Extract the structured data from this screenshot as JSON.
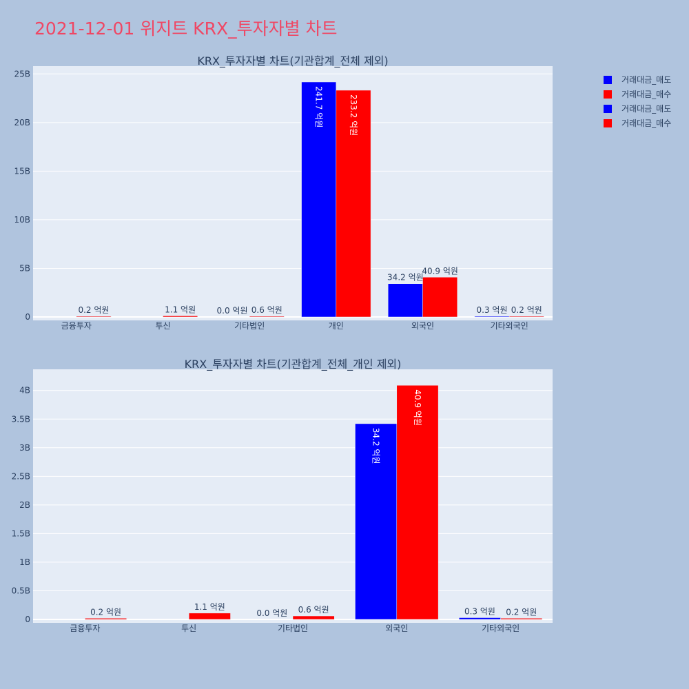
{
  "page": {
    "title": "2021-12-01 위지트 KRX_투자자별 차트"
  },
  "colors": {
    "background": "#b0c4de",
    "plot_bg": "#e5ecf6",
    "gridline": "#ffffff",
    "sell": "#0000ff",
    "buy": "#ff0000",
    "title": "#ef4764",
    "text": "#2a3f5f"
  },
  "legend": {
    "items": [
      {
        "label": "거래대금_매도",
        "color": "#0000ff"
      },
      {
        "label": "거래대금_매수",
        "color": "#ff0000"
      },
      {
        "label": "거래대금_매도",
        "color": "#0000ff"
      },
      {
        "label": "거래대금_매수",
        "color": "#ff0000"
      }
    ]
  },
  "chart_data": [
    {
      "type": "bar",
      "title": "KRX_투자자별 차트(기관합계_전체 제외)",
      "categories": [
        "금융투자",
        "투신",
        "기타법인",
        "개인",
        "외국인",
        "기타외국인"
      ],
      "ylim": [
        0,
        25800000000
      ],
      "yticks": [
        0,
        5000000000,
        10000000000,
        15000000000,
        20000000000,
        25000000000
      ],
      "yticklabels": [
        "0",
        "5B",
        "10B",
        "15B",
        "20B",
        "25B"
      ],
      "series": [
        {
          "name": "거래대금_매도",
          "color": "#0000ff",
          "values": [
            0,
            0,
            0,
            24170000000,
            3420000000,
            30000000
          ],
          "labels": [
            "",
            "",
            "0.0 억원",
            "241.7 억원",
            "34.2 억원",
            "0.3 억원"
          ]
        },
        {
          "name": "거래대금_매수",
          "color": "#ff0000",
          "values": [
            20000000,
            110000000,
            60000000,
            23320000000,
            4090000000,
            20000000
          ],
          "labels": [
            "0.2 억원",
            "1.1 억원",
            "0.6 억원",
            "233.2 억원",
            "40.9 억원",
            "0.2 억원"
          ]
        }
      ],
      "grid": true
    },
    {
      "type": "bar",
      "title": "KRX_투자자별 차트(기관합계_전체_개인 제외)",
      "categories": [
        "금융투자",
        "투신",
        "기타법인",
        "외국인",
        "기타외국인"
      ],
      "ylim": [
        0,
        4370000000
      ],
      "yticks": [
        0,
        500000000,
        1000000000,
        1500000000,
        2000000000,
        2500000000,
        3000000000,
        3500000000,
        4000000000
      ],
      "yticklabels": [
        "0",
        "0.5B",
        "1B",
        "1.5B",
        "2B",
        "2.5B",
        "3B",
        "3.5B",
        "4B"
      ],
      "series": [
        {
          "name": "거래대금_매도",
          "color": "#0000ff",
          "values": [
            0,
            0,
            0,
            3420000000,
            30000000
          ],
          "labels": [
            "",
            "",
            "0.0 억원",
            "34.2 억원",
            "0.3 억원"
          ]
        },
        {
          "name": "거래대금_매수",
          "color": "#ff0000",
          "values": [
            20000000,
            110000000,
            60000000,
            4090000000,
            20000000
          ],
          "labels": [
            "0.2 억원",
            "1.1 억원",
            "0.6 억원",
            "40.9 억원",
            "0.2 억원"
          ]
        }
      ],
      "grid": true
    }
  ]
}
